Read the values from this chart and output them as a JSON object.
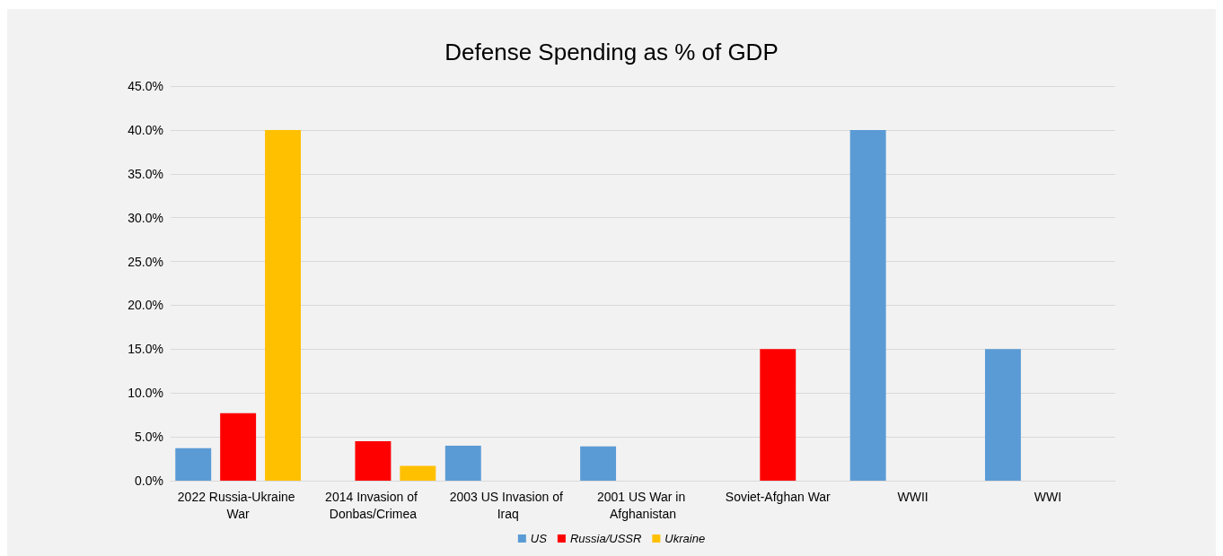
{
  "chart_data": {
    "type": "bar",
    "title": "Defense Spending as % of GDP",
    "categories": [
      "2022 Russia-Ukraine War",
      "2014 Invasion of Donbas/Crimea",
      "2003 US Invasion of Iraq",
      "2001 US War in Afghanistan",
      "Soviet-Afghan War",
      "WWII",
      "WWI"
    ],
    "series": [
      {
        "name": "US",
        "color": "#5b9bd5",
        "values": [
          3.7,
          null,
          4.0,
          3.9,
          null,
          40,
          15
        ]
      },
      {
        "name": "Russia/USSR",
        "color": "#ff0000",
        "values": [
          7.7,
          4.5,
          null,
          null,
          15,
          null,
          null
        ]
      },
      {
        "name": "Ukraine",
        "color": "#ffc000",
        "values": [
          40,
          1.7,
          null,
          null,
          null,
          null,
          null
        ]
      }
    ],
    "ylim": [
      0,
      45
    ],
    "yticks": [
      {
        "value": 0,
        "label": "0.0%"
      },
      {
        "value": 5,
        "label": "5.0%"
      },
      {
        "value": 10,
        "label": "10.0%"
      },
      {
        "value": 15,
        "label": "15.0%"
      },
      {
        "value": 20,
        "label": "20.0%"
      },
      {
        "value": 25,
        "label": "25.0%"
      },
      {
        "value": 30,
        "label": "30.0%"
      },
      {
        "value": 35,
        "label": "35.0%"
      },
      {
        "value": 40,
        "label": "40.0%"
      },
      {
        "value": 45,
        "label": "45.0%"
      }
    ],
    "grid": "y",
    "legend": "bottom"
  }
}
